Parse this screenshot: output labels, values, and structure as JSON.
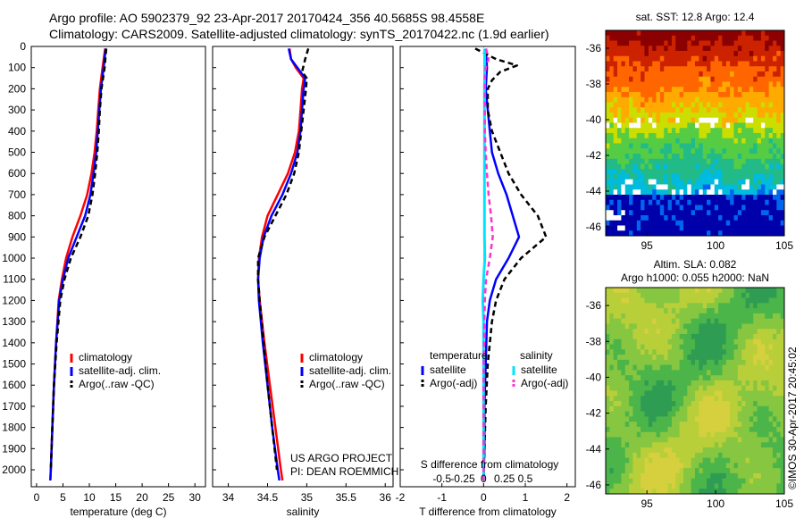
{
  "header": {
    "line1": "Argo profile: AO 5902379_92 23-Apr-2017 20170424_356 40.5685S 98.4558E",
    "line2": "Climatology: CARS2009. Satellite-adjusted climatology: synTS_20170422.nc (1.9d earlier)"
  },
  "credits": {
    "project": "US ARGO PROJECT",
    "pi": "PI: DEAN ROEMMICH",
    "imos": "©IMOS 30-Apr-2017 20:45:02"
  },
  "colors": {
    "climatology": "#ff0000",
    "satellite": "#0000ff",
    "argo": "#000000",
    "satellite_salinity": "#00e5ff",
    "argo_salinity": "#ff33cc"
  },
  "chart_data": [
    {
      "id": "temperature",
      "type": "line",
      "xlabel": "temperature (deg C)",
      "xlim": [
        -1,
        32
      ],
      "ylim": [
        0,
        2080
      ],
      "xticks": [
        0,
        5,
        10,
        15,
        20,
        25,
        30
      ],
      "yticks": [
        0,
        100,
        200,
        300,
        400,
        500,
        600,
        700,
        800,
        900,
        1000,
        1100,
        1200,
        1300,
        1400,
        1500,
        1600,
        1700,
        1800,
        1900,
        2000
      ],
      "legend": [
        "climatology",
        "satellite-adj. clim.",
        "Argo(..raw -QC)"
      ],
      "series": [
        {
          "name": "climatology",
          "style": "red",
          "depth": [
            10,
            100,
            200,
            300,
            400,
            500,
            600,
            700,
            800,
            900,
            1000,
            1100,
            1200,
            1400,
            1600,
            1800,
            2000,
            2050
          ],
          "values": [
            13,
            12.5,
            12,
            11.7,
            11.4,
            11,
            10.4,
            9.6,
            8.3,
            6.8,
            5.6,
            4.8,
            4.2,
            3.7,
            3.3,
            3.0,
            2.7,
            2.6
          ]
        },
        {
          "name": "satellite-adj. clim.",
          "style": "blue",
          "depth": [
            10,
            100,
            200,
            300,
            400,
            500,
            600,
            700,
            800,
            900,
            1000,
            1100,
            1200,
            1400,
            1600,
            1800,
            2000,
            2050
          ],
          "values": [
            13.1,
            12.7,
            12.2,
            11.9,
            11.6,
            11.3,
            10.8,
            10.2,
            9.2,
            7.6,
            6.0,
            5.0,
            4.3,
            3.7,
            3.3,
            3.0,
            2.7,
            2.6
          ]
        },
        {
          "name": "Argo(..raw -QC)",
          "style": "black-dashed",
          "depth": [
            10,
            100,
            200,
            300,
            400,
            500,
            600,
            700,
            800,
            900,
            1000,
            1100,
            1200,
            1400,
            1600,
            1800,
            2000
          ],
          "values": [
            13.2,
            12.9,
            12.3,
            12,
            11.8,
            11.5,
            11.1,
            10.6,
            9.8,
            8.3,
            6.5,
            5.3,
            4.5,
            3.8,
            3.3,
            3.0,
            2.7
          ]
        }
      ]
    },
    {
      "id": "salinity",
      "type": "line",
      "xlabel": "salinity",
      "xlim": [
        33.8,
        36.1
      ],
      "ylim": [
        0,
        2080
      ],
      "xticks": [
        34,
        34.5,
        35,
        35.5,
        36
      ],
      "legend": [
        "climatology",
        "satellite-adj. clim.",
        "Argo(..raw -QC)"
      ],
      "series": [
        {
          "name": "climatology",
          "style": "red",
          "depth": [
            10,
            60,
            100,
            150,
            200,
            300,
            400,
            500,
            600,
            700,
            800,
            900,
            1000,
            1100,
            1200,
            1400,
            1600,
            1800,
            2000,
            2050
          ],
          "values": [
            34.78,
            34.8,
            34.86,
            34.96,
            34.94,
            34.92,
            34.9,
            34.85,
            34.76,
            34.63,
            34.5,
            34.43,
            34.39,
            34.38,
            34.4,
            34.46,
            34.53,
            34.6,
            34.67,
            34.69
          ]
        },
        {
          "name": "satellite-adj. clim.",
          "style": "blue",
          "depth": [
            10,
            60,
            100,
            150,
            200,
            300,
            400,
            500,
            600,
            700,
            800,
            900,
            1000,
            1100,
            1200,
            1400,
            1600,
            1800,
            2000,
            2050
          ],
          "values": [
            34.77,
            34.8,
            34.88,
            34.98,
            34.96,
            34.94,
            34.92,
            34.88,
            34.8,
            34.69,
            34.55,
            34.45,
            34.4,
            34.38,
            34.39,
            34.44,
            34.5,
            34.56,
            34.63,
            34.65
          ]
        },
        {
          "name": "Argo(..raw -QC)",
          "style": "black-dashed",
          "depth": [
            10,
            60,
            90,
            120,
            150,
            200,
            300,
            400,
            500,
            600,
            700,
            800,
            900,
            1000,
            1100,
            1200,
            1400,
            1600,
            1800,
            2000
          ],
          "values": [
            35.02,
            34.98,
            34.96,
            34.94,
            35.0,
            34.99,
            34.96,
            34.93,
            34.9,
            34.84,
            34.74,
            34.6,
            34.46,
            34.38,
            34.38,
            34.4,
            34.45,
            34.5,
            34.56,
            34.62
          ]
        }
      ]
    },
    {
      "id": "difference",
      "type": "line",
      "xlabel": "T difference from climatology",
      "x2label": "S difference from climatology",
      "xlim": [
        -2.0,
        2.2
      ],
      "ylim": [
        0,
        2080
      ],
      "xticks": [
        -2,
        -1,
        0,
        1,
        2
      ],
      "xticks_top": [
        "-0.5",
        "-0.25",
        "0",
        "0.25",
        "0.5"
      ],
      "legend_titles": [
        "temperature",
        "salinity"
      ],
      "legend": [
        "satellite",
        "Argo(-adj)",
        "satellite",
        "Argo(-adj)"
      ],
      "series": [
        {
          "name": "satellite",
          "group": "temperature",
          "style": "blue",
          "depth": [
            10,
            100,
            200,
            300,
            400,
            500,
            600,
            700,
            800,
            900,
            1000,
            1100,
            1200,
            1300,
            1500,
            1700,
            1900,
            2050
          ],
          "values": [
            0.05,
            0.08,
            0.05,
            0.1,
            0.15,
            0.2,
            0.35,
            0.55,
            0.7,
            0.85,
            0.6,
            0.3,
            0.15,
            0.08,
            0.05,
            0.02,
            0.02,
            0.0
          ]
        },
        {
          "name": "Argo(-adj)",
          "group": "temperature",
          "style": "black-dashed",
          "depth": [
            10,
            60,
            90,
            120,
            160,
            200,
            300,
            400,
            500,
            600,
            700,
            800,
            900,
            1000,
            1100,
            1200,
            1300,
            1500,
            1700,
            1900,
            2050
          ],
          "values": [
            -0.2,
            0.3,
            0.8,
            0.4,
            0.2,
            0.1,
            0.1,
            0.2,
            0.4,
            0.6,
            0.9,
            1.3,
            1.5,
            0.9,
            0.5,
            0.3,
            0.2,
            0.1,
            0.05,
            0.02,
            0.0
          ]
        },
        {
          "name": "satellite",
          "group": "salinity",
          "style": "cyan",
          "depth": [
            10,
            100,
            200,
            300,
            400,
            500,
            600,
            700,
            800,
            900,
            1000,
            1100,
            1200,
            1300,
            1500,
            1700,
            1900,
            2050
          ],
          "values": [
            0.02,
            0.03,
            0.02,
            0.02,
            0.02,
            0.02,
            0.02,
            0.02,
            0.02,
            0.02,
            0.03,
            0.0,
            -0.02,
            0.0,
            0.0,
            0.0,
            0.0,
            0.0
          ]
        },
        {
          "name": "Argo(-adj)",
          "group": "salinity",
          "style": "magenta-dashed",
          "depth": [
            10,
            60,
            90,
            120,
            160,
            200,
            300,
            400,
            500,
            600,
            700,
            800,
            900,
            1000,
            1100,
            1200,
            1300,
            1500,
            1700,
            1900,
            2050
          ],
          "values": [
            0.06,
            0.12,
            0.06,
            0.04,
            0.03,
            0.03,
            0.03,
            0.03,
            0.05,
            0.08,
            0.12,
            0.18,
            0.22,
            0.15,
            0.06,
            0.03,
            0.02,
            0.0,
            0.0,
            0.0,
            0.0
          ]
        }
      ]
    },
    {
      "id": "sst-map",
      "type": "heatmap",
      "title": "sat. SST: 12.8 Argo: 12.4",
      "xlim": [
        92,
        105
      ],
      "ylim": [
        -46.5,
        -35
      ],
      "xticks": [
        95,
        100,
        105
      ],
      "yticks": [
        -36,
        -38,
        -40,
        -42,
        -44,
        -46
      ],
      "colors": [
        "#8b0000",
        "#cc2200",
        "#ff6600",
        "#ffaa00",
        "#ccdd00",
        "#55cc44",
        "#22bb88",
        "#00bbdd",
        "#0066ee",
        "#0000aa"
      ]
    },
    {
      "id": "sla-map",
      "type": "heatmap",
      "title": "Altim. SLA: 0.082",
      "subtitle": "Argo h1000: 0.055 h2000: NaN",
      "xlim": [
        92,
        105
      ],
      "ylim": [
        -46.5,
        -35
      ],
      "xticks": [
        95,
        100,
        105
      ],
      "yticks": [
        -36,
        -38,
        -40,
        -42,
        -44,
        -46
      ],
      "colors": [
        "#2e9c52",
        "#4bb54a",
        "#86c640",
        "#b8cf3a",
        "#d6cf3e"
      ]
    }
  ]
}
